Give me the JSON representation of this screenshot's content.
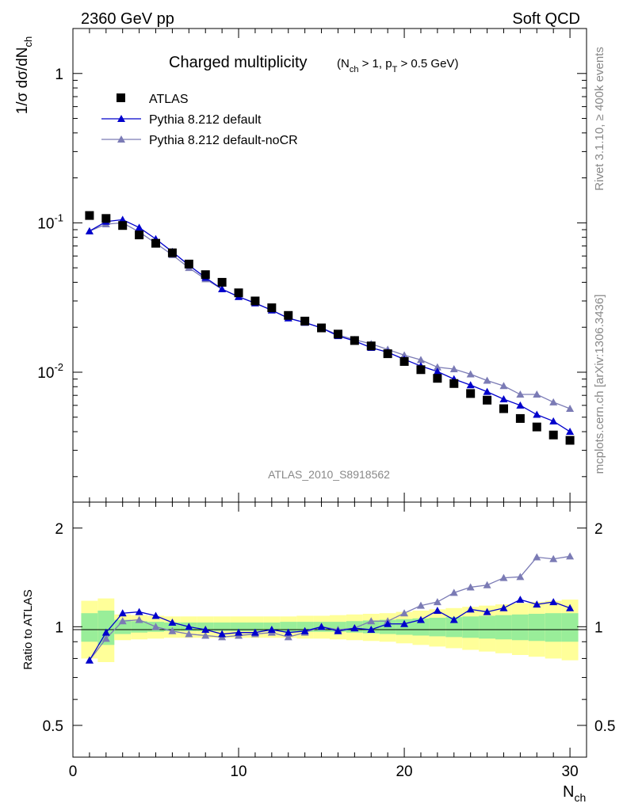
{
  "header": {
    "left": "2360 GeV pp",
    "right": "Soft QCD"
  },
  "side_labels": {
    "rivet": "Rivet 3.1.10, ≥ 400k events",
    "source": "mcplots.cern.ch [arXiv:1306.3436]"
  },
  "chart_data": [
    {
      "type": "scatter",
      "title": "Charged multiplicity",
      "subtitle": "(N_ch > 1, p_T > 0.5 GeV)",
      "watermark": "ATLAS_2010_S8918562",
      "ylabel": "1/σ dσ/dN_ch",
      "xlabel": "N_ch",
      "yscale": "log",
      "xlim": [
        0,
        31
      ],
      "ylim": [
        0.00135,
        2.0
      ],
      "ytick_labels": [
        "10^-2",
        "10^-1",
        "1"
      ],
      "legend_position": "top-left",
      "colors": {
        "ATLAS": "#000000",
        "default": "#0000cc",
        "noCR": "#7b7bb5"
      },
      "series": [
        {
          "name": "ATLAS",
          "x": [
            1,
            2,
            3,
            4,
            5,
            6,
            7,
            8,
            9,
            10,
            11,
            12,
            13,
            14,
            15,
            16,
            17,
            18,
            19,
            20,
            21,
            22,
            23,
            24,
            25,
            26,
            27,
            28,
            29,
            30
          ],
          "values": [
            0.112,
            0.107,
            0.096,
            0.083,
            0.073,
            0.063,
            0.053,
            0.045,
            0.04,
            0.034,
            0.03,
            0.027,
            0.024,
            0.022,
            0.0198,
            0.018,
            0.0163,
            0.015,
            0.0133,
            0.0118,
            0.0104,
            0.0091,
            0.0084,
            0.0072,
            0.0065,
            0.0057,
            0.0049,
            0.0043,
            0.0038,
            0.0035
          ]
        },
        {
          "name": "Pythia 8.212 default",
          "x": [
            1,
            2,
            3,
            4,
            5,
            6,
            7,
            8,
            9,
            10,
            11,
            12,
            13,
            14,
            15,
            16,
            17,
            18,
            19,
            20,
            21,
            22,
            23,
            24,
            25,
            26,
            27,
            28,
            29,
            30
          ],
          "values": [
            0.088,
            0.102,
            0.105,
            0.093,
            0.078,
            0.064,
            0.052,
            0.043,
            0.036,
            0.032,
            0.029,
            0.026,
            0.023,
            0.0215,
            0.0198,
            0.0175,
            0.0162,
            0.0146,
            0.0136,
            0.0122,
            0.011,
            0.0101,
            0.009,
            0.0082,
            0.0074,
            0.0066,
            0.006,
            0.0052,
            0.0047,
            0.004
          ]
        },
        {
          "name": "Pythia 8.212 default-noCR",
          "x": [
            1,
            2,
            3,
            4,
            5,
            6,
            7,
            8,
            9,
            10,
            11,
            12,
            13,
            14,
            15,
            16,
            17,
            18,
            19,
            20,
            21,
            22,
            23,
            24,
            25,
            26,
            27,
            28,
            29,
            30
          ],
          "values": [
            0.088,
            0.098,
            0.1,
            0.087,
            0.073,
            0.061,
            0.05,
            0.042,
            0.036,
            0.032,
            0.029,
            0.026,
            0.023,
            0.0215,
            0.0198,
            0.0178,
            0.0165,
            0.0155,
            0.0142,
            0.013,
            0.0121,
            0.0108,
            0.0105,
            0.0097,
            0.0088,
            0.0081,
            0.0071,
            0.0071,
            0.0063,
            0.0057
          ]
        }
      ]
    },
    {
      "type": "line",
      "ylabel": "Ratio to ATLAS",
      "xlabel": "N_ch",
      "xlim": [
        0,
        31
      ],
      "ylim": [
        0.4,
        2.4
      ],
      "ytick_labels": [
        "0.5",
        "1",
        "2"
      ],
      "xtick_labels": [
        "0",
        "10",
        "20",
        "30"
      ],
      "bands": {
        "x": [
          1,
          2,
          3,
          4,
          5,
          6,
          7,
          8,
          9,
          10,
          11,
          12,
          13,
          14,
          15,
          16,
          17,
          18,
          19,
          20,
          21,
          22,
          23,
          24,
          25,
          26,
          27,
          28,
          29,
          30
        ],
        "stat_half_width": [
          0.1,
          0.12,
          0.05,
          0.04,
          0.035,
          0.03,
          0.03,
          0.03,
          0.03,
          0.03,
          0.03,
          0.03,
          0.035,
          0.035,
          0.035,
          0.035,
          0.04,
          0.045,
          0.05,
          0.055,
          0.06,
          0.065,
          0.07,
          0.075,
          0.08,
          0.085,
          0.09,
          0.095,
          0.1,
          0.1
        ],
        "total_half_width": [
          0.2,
          0.22,
          0.09,
          0.085,
          0.08,
          0.075,
          0.075,
          0.075,
          0.075,
          0.075,
          0.075,
          0.075,
          0.075,
          0.08,
          0.08,
          0.085,
          0.09,
          0.095,
          0.1,
          0.11,
          0.12,
          0.13,
          0.14,
          0.15,
          0.16,
          0.17,
          0.18,
          0.19,
          0.2,
          0.21
        ]
      },
      "series": [
        {
          "name": "Pythia 8.212 default",
          "values": [
            0.79,
            0.96,
            1.1,
            1.11,
            1.08,
            1.03,
            1.0,
            0.98,
            0.95,
            0.96,
            0.96,
            0.98,
            0.96,
            0.97,
            1.0,
            0.97,
            0.99,
            0.98,
            1.02,
            1.02,
            1.05,
            1.12,
            1.05,
            1.13,
            1.11,
            1.14,
            1.21,
            1.17,
            1.19,
            1.14
          ]
        },
        {
          "name": "Pythia 8.212 default-noCR",
          "values": [
            0.79,
            0.92,
            1.04,
            1.05,
            1.0,
            0.97,
            0.95,
            0.94,
            0.93,
            0.94,
            0.95,
            0.96,
            0.93,
            0.96,
            1.0,
            0.98,
            0.99,
            1.04,
            1.04,
            1.1,
            1.16,
            1.19,
            1.27,
            1.32,
            1.34,
            1.41,
            1.42,
            1.63,
            1.61,
            1.64
          ]
        }
      ]
    }
  ]
}
